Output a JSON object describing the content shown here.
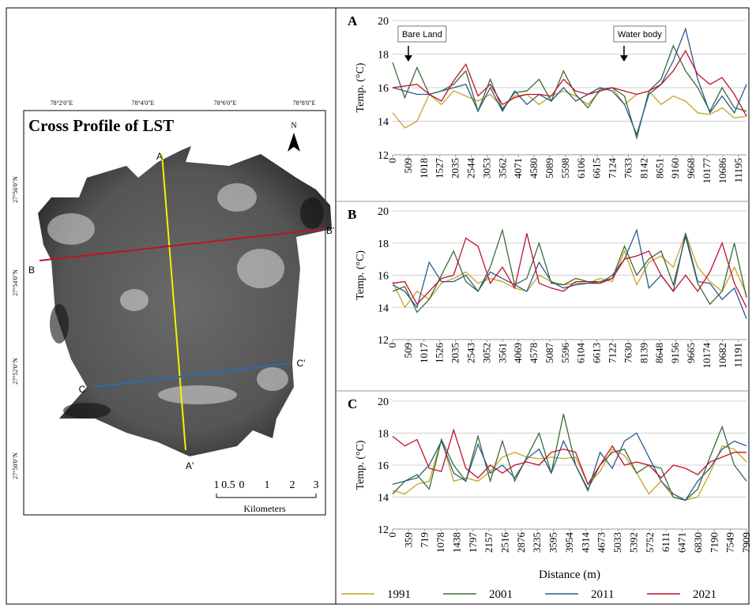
{
  "map": {
    "title": "Cross Profile of LST",
    "north": "N",
    "longitudes": [
      "78°2'0\"E",
      "78°4'0\"E",
      "78°6'0\"E",
      "78°8'0\"E"
    ],
    "latitudes": [
      "27°56'0\"N",
      "27°54'0\"N",
      "27°52'0\"N",
      "27°50'0\"N"
    ],
    "labels": [
      "A",
      "A'",
      "B",
      "B'",
      "C",
      "C'"
    ],
    "scale_labels": [
      "1",
      "0.5",
      "0",
      "1",
      "2",
      "3"
    ],
    "scale_unit": "Kilometers"
  },
  "chart_data": [
    {
      "type": "line",
      "title": "A",
      "y_label": "Temp. (°C)",
      "ylim": [
        12,
        20
      ],
      "yticks": [
        12,
        14,
        16,
        18,
        20
      ],
      "grid": true,
      "xlim": [
        0,
        11455
      ],
      "xticks": [
        0,
        509,
        1018,
        1527,
        2035,
        2544,
        3053,
        3562,
        4071,
        4580,
        5089,
        5598,
        6106,
        6615,
        7124,
        7633,
        8142,
        8651,
        9160,
        9668,
        10177,
        10686,
        11195
      ],
      "annotations": [
        {
          "text": "Bare Land",
          "x": 510
        },
        {
          "text": "Water body",
          "x": 7490
        }
      ],
      "x": [
        0,
        395,
        790,
        1185,
        1580,
        1975,
        2370,
        2765,
        3160,
        3555,
        3950,
        4345,
        4740,
        5135,
        5530,
        5925,
        6320,
        6715,
        7110,
        7505,
        7900,
        8295,
        8690,
        9085,
        9480,
        9875,
        10270,
        10665,
        11060,
        11455
      ],
      "series": [
        {
          "color": "#c9a227",
          "values": [
            14.5,
            13.6,
            14.0,
            15.6,
            15.0,
            15.8,
            15.5,
            15.2,
            15.6,
            14.8,
            15.5,
            15.6,
            15.0,
            15.5,
            15.8,
            15.5,
            15.0,
            15.8,
            16.0,
            15.0,
            15.6,
            15.8,
            15.0,
            15.5,
            15.2,
            14.5,
            14.4,
            14.8,
            14.2,
            14.3
          ]
        },
        {
          "color": "#3a6b35",
          "values": [
            17.5,
            15.4,
            17.2,
            15.6,
            15.8,
            16.2,
            17.0,
            14.6,
            16.5,
            14.7,
            15.7,
            15.8,
            16.5,
            15.2,
            17.0,
            15.6,
            14.8,
            15.9,
            16.0,
            15.5,
            13.0,
            15.8,
            16.5,
            18.5,
            17.0,
            16.0,
            14.6,
            16.0,
            14.8,
            14.6
          ]
        },
        {
          "color": "#2b5c8a",
          "values": [
            16.0,
            15.8,
            15.6,
            15.6,
            15.8,
            16.0,
            16.2,
            14.6,
            16.0,
            14.6,
            15.8,
            15.0,
            15.6,
            15.2,
            16.0,
            15.2,
            15.6,
            16.0,
            15.8,
            15.0,
            13.2,
            15.6,
            16.2,
            17.6,
            19.5,
            16.5,
            14.5,
            15.5,
            14.5,
            16.2
          ]
        },
        {
          "color": "#c0102a",
          "values": [
            16.0,
            16.1,
            16.2,
            15.6,
            15.2,
            16.4,
            17.4,
            15.5,
            16.2,
            15.0,
            15.4,
            15.6,
            15.6,
            15.5,
            16.5,
            15.8,
            15.6,
            15.8,
            16.0,
            15.8,
            15.6,
            15.8,
            16.2,
            17.0,
            18.2,
            16.8,
            16.2,
            16.6,
            15.6,
            14.3
          ]
        }
      ]
    },
    {
      "type": "line",
      "title": "B",
      "y_label": "Temp. (°C)",
      "ylim": [
        12,
        20
      ],
      "yticks": [
        12,
        14,
        16,
        18,
        20
      ],
      "grid": true,
      "xlim": [
        0,
        11455
      ],
      "xticks": [
        0,
        509,
        1017,
        1526,
        2035,
        2543,
        3052,
        3561,
        4069,
        4578,
        5087,
        5596,
        6104,
        6613,
        7122,
        7630,
        8139,
        8648,
        9156,
        9665,
        10174,
        10682,
        11191
      ],
      "x": [
        0,
        395,
        790,
        1185,
        1580,
        1975,
        2370,
        2765,
        3160,
        3555,
        3950,
        4345,
        4740,
        5135,
        5530,
        5925,
        6320,
        6715,
        7110,
        7505,
        7900,
        8295,
        8690,
        9085,
        9480,
        9875,
        10270,
        10665,
        11060,
        11455
      ],
      "series": [
        {
          "color": "#c9a227",
          "values": [
            15.6,
            14.0,
            15.0,
            14.5,
            15.5,
            15.8,
            16.2,
            15.5,
            15.8,
            15.6,
            15.2,
            15.0,
            16.0,
            15.6,
            15.4,
            15.5,
            15.5,
            15.8,
            15.6,
            17.5,
            15.4,
            16.8,
            17.2,
            16.5,
            18.6,
            16.5,
            15.6,
            15.0,
            16.5,
            14.8
          ]
        },
        {
          "color": "#3a6b35",
          "values": [
            15.0,
            15.3,
            13.7,
            14.5,
            16.0,
            17.5,
            15.6,
            15.0,
            16.5,
            18.8,
            15.4,
            15.8,
            18.0,
            15.5,
            15.4,
            15.8,
            15.6,
            15.6,
            15.8,
            17.8,
            16.0,
            17.0,
            17.5,
            15.4,
            18.4,
            15.5,
            14.2,
            15.0,
            18.0,
            14.6
          ]
        },
        {
          "color": "#2b5c8a",
          "values": [
            15.4,
            15.0,
            14.0,
            16.8,
            15.6,
            15.6,
            16.0,
            15.0,
            16.2,
            15.8,
            15.4,
            15.0,
            16.8,
            15.6,
            15.2,
            15.4,
            15.5,
            15.5,
            16.0,
            17.0,
            18.8,
            15.2,
            16.0,
            15.0,
            18.6,
            15.6,
            15.5,
            14.5,
            15.2,
            13.3
          ]
        },
        {
          "color": "#c0102a",
          "values": [
            15.5,
            15.6,
            14.2,
            15.0,
            15.8,
            16.0,
            18.3,
            17.8,
            15.5,
            16.5,
            15.2,
            18.6,
            15.5,
            15.2,
            15.0,
            15.6,
            15.6,
            15.5,
            15.8,
            17.0,
            17.2,
            17.5,
            16.0,
            15.0,
            16.0,
            15.0,
            16.2,
            18.0,
            15.5,
            14.0
          ]
        }
      ]
    },
    {
      "type": "line",
      "title": "C",
      "y_label": "Temp. (°C)",
      "x_label": "Distance (m)",
      "ylim": [
        12,
        20
      ],
      "yticks": [
        12,
        14,
        16,
        18,
        20
      ],
      "grid": true,
      "xlim": [
        0,
        7909
      ],
      "xticks": [
        0,
        359,
        719,
        1078,
        1438,
        1797,
        2157,
        2516,
        2876,
        3235,
        3595,
        3954,
        4314,
        4673,
        5033,
        5392,
        5752,
        6111,
        6471,
        6830,
        7190,
        7549,
        7909
      ],
      "x": [
        0,
        273,
        545,
        818,
        1091,
        1364,
        1636,
        1909,
        2182,
        2454,
        2727,
        3000,
        3273,
        3545,
        3818,
        4091,
        4364,
        4636,
        4909,
        5182,
        5454,
        5727,
        6000,
        6273,
        6545,
        6818,
        7091,
        7364,
        7636,
        7909
      ],
      "series": [
        {
          "name": "1991",
          "color": "#c9a227",
          "values": [
            14.4,
            14.2,
            14.8,
            15.0,
            17.6,
            15.0,
            15.2,
            15.0,
            15.6,
            16.5,
            16.8,
            16.5,
            16.4,
            16.5,
            16.4,
            16.5,
            14.8,
            15.6,
            17.0,
            16.6,
            15.5,
            14.2,
            15.0,
            14.0,
            13.8,
            14.0,
            15.5,
            17.2,
            17.0,
            16.2
          ]
        },
        {
          "name": "2001",
          "color": "#3a6b35",
          "values": [
            14.2,
            15.0,
            15.4,
            14.5,
            17.6,
            16.0,
            15.0,
            17.8,
            15.0,
            17.5,
            15.0,
            16.5,
            18.0,
            15.5,
            19.2,
            16.0,
            14.5,
            16.0,
            16.8,
            17.0,
            15.5,
            16.0,
            15.8,
            14.0,
            13.8,
            14.5,
            16.5,
            18.4,
            16.0,
            15.0
          ]
        },
        {
          "name": "2011",
          "color": "#2b5c8a",
          "values": [
            14.8,
            15.0,
            15.2,
            16.0,
            17.5,
            15.5,
            15.0,
            17.3,
            15.5,
            16.0,
            15.2,
            16.4,
            17.0,
            15.5,
            17.5,
            16.0,
            14.4,
            16.8,
            15.8,
            17.5,
            18.0,
            16.5,
            15.0,
            14.2,
            13.8,
            15.0,
            15.8,
            17.0,
            17.5,
            17.2
          ]
        },
        {
          "name": "2021",
          "color": "#c0102a",
          "values": [
            17.8,
            17.2,
            17.6,
            15.8,
            15.6,
            18.2,
            15.8,
            15.2,
            16.0,
            15.5,
            16.0,
            16.2,
            16.0,
            16.8,
            17.0,
            16.8,
            14.8,
            16.0,
            17.2,
            16.0,
            16.2,
            16.0,
            15.2,
            16.0,
            15.8,
            15.4,
            16.2,
            16.5,
            16.8,
            16.8
          ]
        }
      ]
    }
  ]
}
